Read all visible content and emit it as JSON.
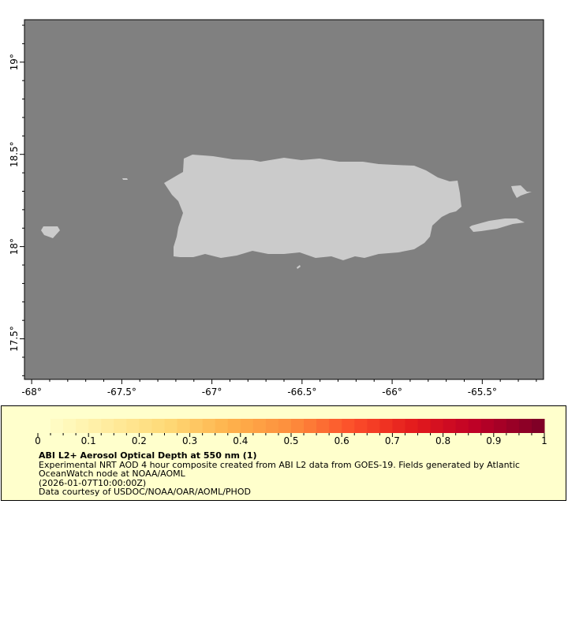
{
  "map": {
    "lon_range": [
      -68.04,
      -65.16
    ],
    "lat_range": [
      17.28,
      19.23
    ],
    "ocean_color": "#808080",
    "land_color": "#cbcbcb",
    "x_ticks": [
      {
        "v": -68,
        "label": "-68°"
      },
      {
        "v": -67.5,
        "label": "-67.5°"
      },
      {
        "v": -67,
        "label": "-67°"
      },
      {
        "v": -66.5,
        "label": "-66.5°"
      },
      {
        "v": -66,
        "label": "-66°"
      },
      {
        "v": -65.5,
        "label": "-65.5°"
      }
    ],
    "y_ticks": [
      {
        "v": 19,
        "label": "19°"
      },
      {
        "v": 18.5,
        "label": "18.5°"
      },
      {
        "v": 18,
        "label": "18°"
      },
      {
        "v": 17.5,
        "label": "17.5°"
      }
    ]
  },
  "colorbar": {
    "min": 0,
    "max": 1,
    "bins": 40,
    "colormap": [
      "#ffffcc",
      "#ffeda0",
      "#fed976",
      "#feb24c",
      "#fd8d3c",
      "#fc4e2a",
      "#e31a1c",
      "#bd0026",
      "#800026"
    ],
    "tick_labels": [
      "0",
      "0.1",
      "0.2",
      "0.3",
      "0.4",
      "0.5",
      "0.6",
      "0.7",
      "0.8",
      "0.9",
      "1"
    ]
  },
  "legend": {
    "title": "ABI L2+ Aerosol Optical Depth at 550 nm (1)",
    "line1": "Experimental NRT AOD 4 hour composite created from ABI L2 data from GOES-19. Fields generated by Atlantic",
    "line2": "OceanWatch node at NOAA/AOML",
    "time": "(2026-01-07T10:00:00Z)",
    "credit": "Data courtesy of USDOC/NOAA/OAR/AOML/PHOD"
  }
}
